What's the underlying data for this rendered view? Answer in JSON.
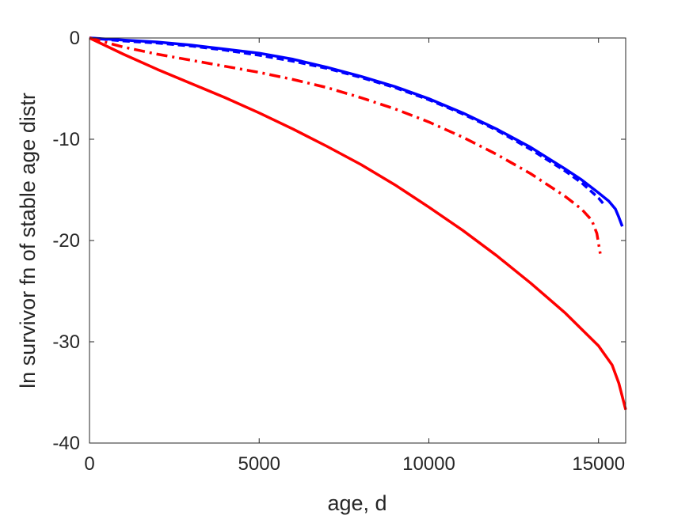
{
  "chart_data": {
    "type": "line",
    "title": "",
    "xlabel": "age, d",
    "ylabel": "ln survivor fn of stable age distr",
    "xlim": [
      0,
      15800
    ],
    "ylim": [
      -40,
      0
    ],
    "xticks": [
      0,
      5000,
      10000,
      15000
    ],
    "yticks": [
      0,
      -10,
      -20,
      -30,
      -40
    ],
    "xtick_labels": [
      "0",
      "5000",
      "10000",
      "15000"
    ],
    "ytick_labels": [
      "0",
      "-10",
      "-20",
      "-30",
      "-40"
    ],
    "grid": false,
    "box": true,
    "series": [
      {
        "color": "#0000ff",
        "style": "solid",
        "x": [
          0,
          1000,
          2000,
          3000,
          4000,
          5000,
          6000,
          7000,
          8000,
          9000,
          10000,
          11000,
          12000,
          13000,
          14000,
          14500,
          15000,
          15300,
          15500,
          15600,
          15700
        ],
        "y": [
          0,
          -0.2,
          -0.4,
          -0.7,
          -1.1,
          -1.5,
          -2.1,
          -2.9,
          -3.8,
          -4.8,
          -6.0,
          -7.4,
          -9.0,
          -10.8,
          -12.9,
          -14.0,
          -15.3,
          -16.1,
          -16.9,
          -17.7,
          -18.6
        ]
      },
      {
        "color": "#0000ff",
        "style": "dashed",
        "x": [
          0,
          1000,
          2000,
          3000,
          4000,
          5000,
          6000,
          7000,
          8000,
          9000,
          10000,
          11000,
          12000,
          13000,
          14000,
          14500,
          15000,
          15200
        ],
        "y": [
          0,
          -0.3,
          -0.5,
          -0.8,
          -1.2,
          -1.7,
          -2.3,
          -3.0,
          -3.9,
          -4.9,
          -6.1,
          -7.5,
          -9.1,
          -11.0,
          -13.1,
          -14.3,
          -15.8,
          -16.6
        ]
      },
      {
        "color": "#ff0000",
        "style": "dashdot",
        "x": [
          0,
          1000,
          2000,
          3000,
          4000,
          5000,
          6000,
          7000,
          8000,
          9000,
          10000,
          11000,
          12000,
          13000,
          14000,
          14500,
          14800,
          14950,
          15050
        ],
        "y": [
          0,
          -0.9,
          -1.6,
          -2.2,
          -2.8,
          -3.4,
          -4.1,
          -4.9,
          -5.9,
          -7.0,
          -8.3,
          -9.8,
          -11.5,
          -13.4,
          -15.6,
          -16.9,
          -18.0,
          -19.3,
          -21.3
        ]
      },
      {
        "color": "#ff0000",
        "style": "solid",
        "x": [
          0,
          1000,
          2000,
          3000,
          4000,
          5000,
          6000,
          7000,
          8000,
          9000,
          10000,
          11000,
          12000,
          13000,
          14000,
          15000,
          15400,
          15600,
          15800
        ],
        "y": [
          0,
          -1.6,
          -3.1,
          -4.5,
          -5.9,
          -7.4,
          -9.0,
          -10.7,
          -12.5,
          -14.5,
          -16.7,
          -19.0,
          -21.5,
          -24.2,
          -27.1,
          -30.4,
          -32.3,
          -34.1,
          -36.7
        ]
      }
    ]
  }
}
